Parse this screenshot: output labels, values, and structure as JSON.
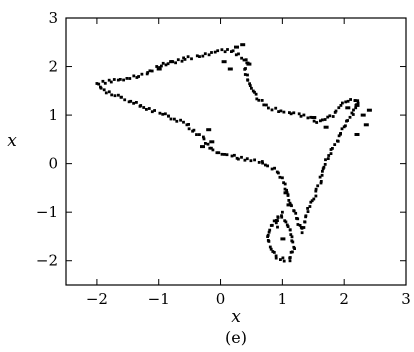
{
  "chart_data": {
    "type": "scatter",
    "xlabel": "x",
    "ylabel": "x",
    "caption": "(e)",
    "xlim": [
      -2.5,
      3
    ],
    "ylim": [
      -2.5,
      3
    ],
    "xticks": [
      -2,
      -1,
      0,
      1,
      2,
      3
    ],
    "yticks": [
      -2,
      -1,
      0,
      1,
      2,
      3
    ],
    "xtick_labels": [
      "−2",
      "−1",
      "0",
      "1",
      "2",
      "3"
    ],
    "ytick_labels": [
      "−2",
      "−1",
      "0",
      "1",
      "2",
      "3"
    ],
    "grid": false,
    "marker_color": "#000000",
    "series": [
      {
        "x": [
          -2.0,
          -1.9,
          -1.5,
          -1.0,
          -0.6,
          -0.3,
          -0.2,
          -0.1,
          0.3,
          0.7,
          0.95,
          1.05,
          1.1,
          1.2,
          1.3,
          1.5,
          1.6,
          1.7,
          1.9,
          2.0,
          2.15,
          2.25,
          2.2,
          2.0,
          1.8,
          1.6,
          1.5,
          1.3,
          1.1,
          0.8,
          0.6,
          0.5,
          0.4,
          0.45,
          0.2,
          0.0,
          -0.2,
          -0.6,
          -1.0,
          -1.2,
          -1.5,
          -1.75,
          -2.0
        ],
        "y": [
          1.65,
          1.5,
          1.3,
          1.05,
          0.85,
          0.55,
          0.4,
          0.25,
          0.12,
          0.02,
          -0.2,
          -0.5,
          -0.8,
          -1.05,
          -1.4,
          -0.7,
          -0.4,
          0.0,
          0.5,
          0.75,
          1.05,
          1.25,
          1.3,
          1.3,
          1.0,
          0.85,
          0.9,
          1.0,
          1.05,
          1.15,
          1.35,
          1.6,
          1.85,
          2.1,
          2.3,
          2.35,
          2.25,
          2.15,
          2.0,
          1.85,
          1.75,
          1.7,
          1.65
        ]
      },
      {
        "x": [
          1.0,
          0.85,
          0.75,
          0.8,
          0.9,
          1.1,
          1.2,
          1.15,
          1.05,
          0.95,
          0.9
        ],
        "y": [
          -1.0,
          -1.2,
          -1.45,
          -1.75,
          -1.95,
          -2.0,
          -1.75,
          -1.4,
          -1.15,
          -1.1,
          -1.35
        ]
      },
      {
        "x": [
          2.2,
          2.3,
          2.4,
          2.35,
          2.2,
          2.05,
          0.25,
          0.35,
          0.45,
          -0.2,
          -0.3,
          -0.15,
          1.5,
          1.7,
          0.05,
          0.15,
          -1.0,
          -0.8,
          1.05,
          1.1,
          1.0
        ],
        "y": [
          1.2,
          1.0,
          1.1,
          0.8,
          0.6,
          1.15,
          2.4,
          2.45,
          2.05,
          0.7,
          0.35,
          0.45,
          0.95,
          0.75,
          2.1,
          1.95,
          1.95,
          2.1,
          -0.6,
          -0.85,
          -1.55
        ]
      }
    ]
  }
}
